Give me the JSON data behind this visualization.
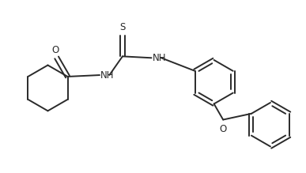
{
  "bg_color": "#ffffff",
  "line_color": "#2a2a2a",
  "line_width": 1.4,
  "text_color": "#2a2a2a",
  "font_size": 8.5,
  "fig_width": 3.87,
  "fig_height": 2.19,
  "dpi": 100,
  "xlim": [
    0,
    10
  ],
  "ylim": [
    0,
    5.6
  ]
}
